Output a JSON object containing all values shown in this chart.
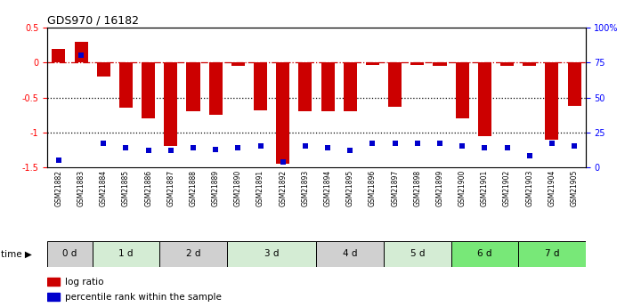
{
  "title": "GDS970 / 16182",
  "samples": [
    "GSM21882",
    "GSM21883",
    "GSM21884",
    "GSM21885",
    "GSM21886",
    "GSM21887",
    "GSM21888",
    "GSM21889",
    "GSM21890",
    "GSM21891",
    "GSM21892",
    "GSM21893",
    "GSM21894",
    "GSM21895",
    "GSM21896",
    "GSM21897",
    "GSM21898",
    "GSM21899",
    "GSM21900",
    "GSM21901",
    "GSM21902",
    "GSM21903",
    "GSM21904",
    "GSM21905"
  ],
  "log_ratio": [
    0.2,
    0.3,
    -0.2,
    -0.65,
    -0.8,
    -1.2,
    -0.7,
    -0.75,
    -0.05,
    -0.68,
    -1.45,
    -0.7,
    -0.7,
    -0.7,
    -0.04,
    -0.63,
    -0.03,
    -0.05,
    -0.8,
    -1.05,
    -0.05,
    -0.05,
    -1.1,
    -0.62
  ],
  "percentile": [
    5,
    80,
    17,
    14,
    12,
    12,
    14,
    13,
    14,
    15,
    4,
    15,
    14,
    12,
    17,
    17,
    17,
    17,
    15,
    14,
    14,
    8,
    17,
    15
  ],
  "time_groups": [
    {
      "label": "0 d",
      "start": 0,
      "end": 2,
      "color": "#d0d0d0"
    },
    {
      "label": "1 d",
      "start": 2,
      "end": 5,
      "color": "#d4ecd4"
    },
    {
      "label": "2 d",
      "start": 5,
      "end": 8,
      "color": "#d0d0d0"
    },
    {
      "label": "3 d",
      "start": 8,
      "end": 12,
      "color": "#d4ecd4"
    },
    {
      "label": "4 d",
      "start": 12,
      "end": 15,
      "color": "#d0d0d0"
    },
    {
      "label": "5 d",
      "start": 15,
      "end": 18,
      "color": "#d4ecd4"
    },
    {
      "label": "6 d",
      "start": 18,
      "end": 21,
      "color": "#78e878"
    },
    {
      "label": "7 d",
      "start": 21,
      "end": 24,
      "color": "#78e878"
    }
  ],
  "ylim_left": [
    -1.5,
    0.5
  ],
  "ylim_right": [
    0,
    100
  ],
  "yticks_left": [
    -1.5,
    -1.0,
    -0.5,
    0.0,
    0.5
  ],
  "ytick_labels_left": [
    "-1.5",
    "-1",
    "-0.5",
    "0",
    "0.5"
  ],
  "yticks_right": [
    0,
    25,
    50,
    75,
    100
  ],
  "ytick_labels_right": [
    "0",
    "25",
    "50",
    "75",
    "100%"
  ],
  "bar_color": "#cc0000",
  "dot_color": "#0000cc",
  "bg_color": "#ffffff",
  "bar_width": 0.6,
  "dot_size": 5
}
